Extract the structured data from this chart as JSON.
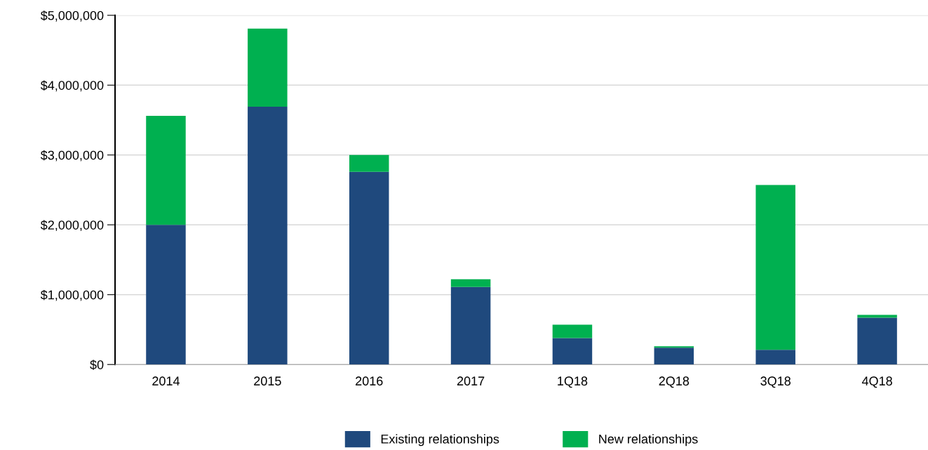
{
  "chart_data": {
    "type": "bar",
    "stacked": true,
    "categories": [
      "2014",
      "2015",
      "2016",
      "2017",
      "1Q18",
      "2Q18",
      "3Q18",
      "4Q18"
    ],
    "series": [
      {
        "name": "Existing relationships",
        "color": "#1f497d",
        "values": [
          2000000,
          3690000,
          2760000,
          1110000,
          380000,
          240000,
          210000,
          670000
        ]
      },
      {
        "name": "New relationships",
        "color": "#00b050",
        "values": [
          1560000,
          1120000,
          240000,
          110000,
          190000,
          20000,
          2360000,
          40000
        ]
      }
    ],
    "ylim": [
      0,
      5000000
    ],
    "yticks": [
      {
        "value": 0,
        "label": "$0"
      },
      {
        "value": 1000000,
        "label": "$1,000,000"
      },
      {
        "value": 2000000,
        "label": "$2,000,000"
      },
      {
        "value": 3000000,
        "label": "$3,000,000"
      },
      {
        "value": 4000000,
        "label": "$4,000,000"
      },
      {
        "value": 5000000,
        "label": "$5,000,000"
      }
    ],
    "grid": "y",
    "legend": "bottom"
  }
}
